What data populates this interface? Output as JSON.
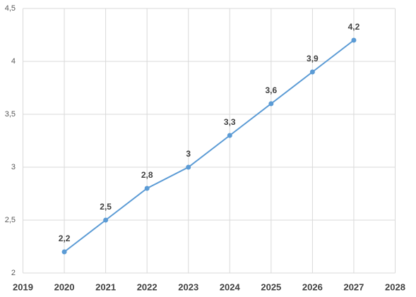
{
  "chart_data": {
    "type": "line",
    "x": [
      2020,
      2021,
      2022,
      2023,
      2024,
      2025,
      2026,
      2027
    ],
    "series": [
      {
        "color": "#5b9bd5",
        "values": [
          2.2,
          2.5,
          2.8,
          3,
          3.3,
          3.6,
          3.9,
          4.2
        ],
        "value_labels": [
          "2,2",
          "2,5",
          "2,8",
          "3",
          "3,3",
          "3,6",
          "3,9",
          "4,2"
        ]
      }
    ],
    "xlim": [
      2019,
      2028
    ],
    "xticks": [
      2019,
      2020,
      2021,
      2022,
      2023,
      2024,
      2025,
      2026,
      2027,
      2028
    ],
    "ylim": [
      2,
      4.5
    ],
    "yticks": [
      2,
      {
        "value": 2.5,
        "label": "2,5"
      },
      3,
      {
        "value": 3.5,
        "label": "3,5"
      },
      4,
      {
        "value": 4.5,
        "label": "4,5"
      }
    ],
    "grid": true
  }
}
